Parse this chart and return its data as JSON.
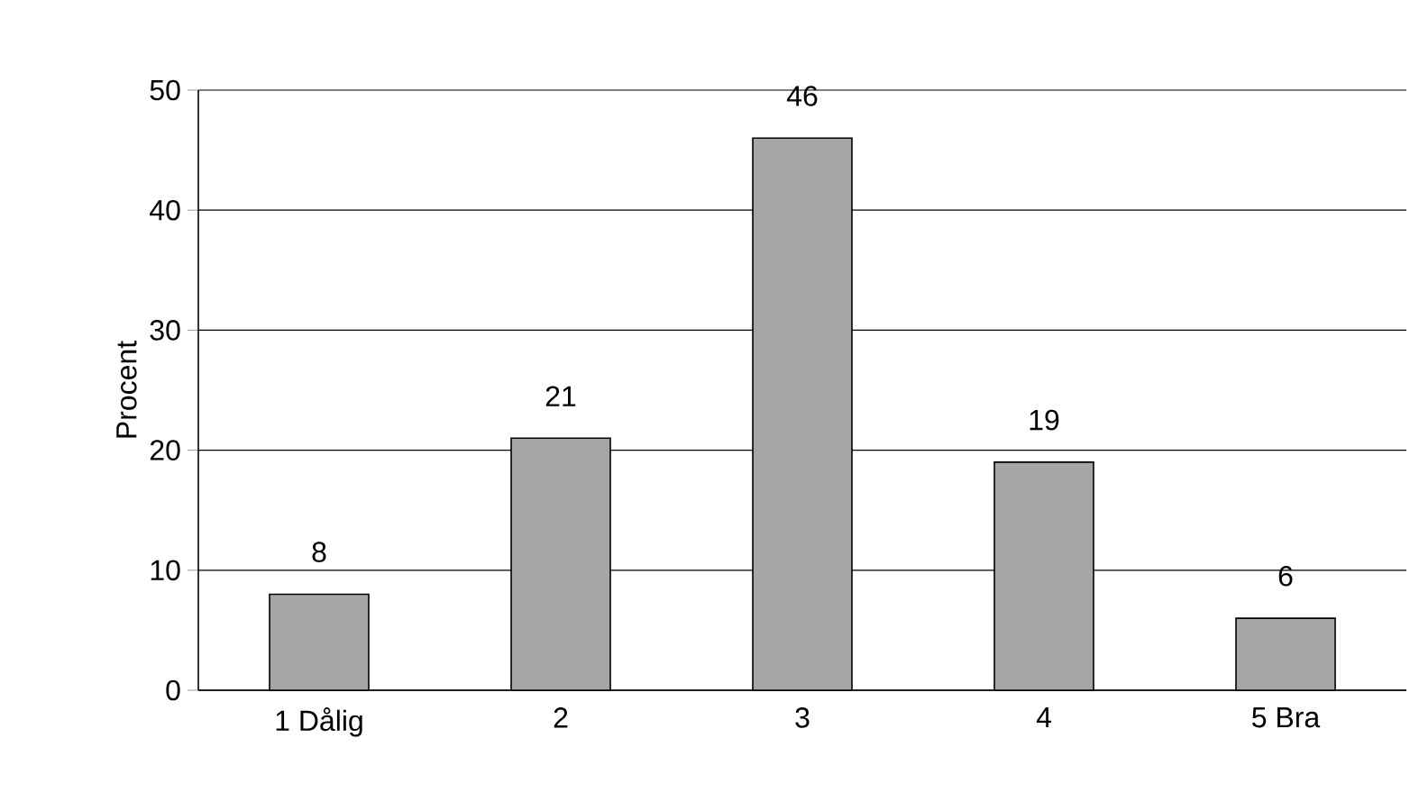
{
  "chart_data": {
    "type": "bar",
    "ylabel": "Procent",
    "categories": [
      "1 Dålig",
      "2",
      "3",
      "4",
      "5 Bra"
    ],
    "values": [
      8,
      21,
      46,
      19,
      6
    ],
    "color": "#a6a6a6",
    "ylim": [
      0,
      50
    ],
    "yticks": [
      0,
      10,
      20,
      30,
      40,
      50
    ],
    "grid": "y",
    "data_labels": true
  }
}
